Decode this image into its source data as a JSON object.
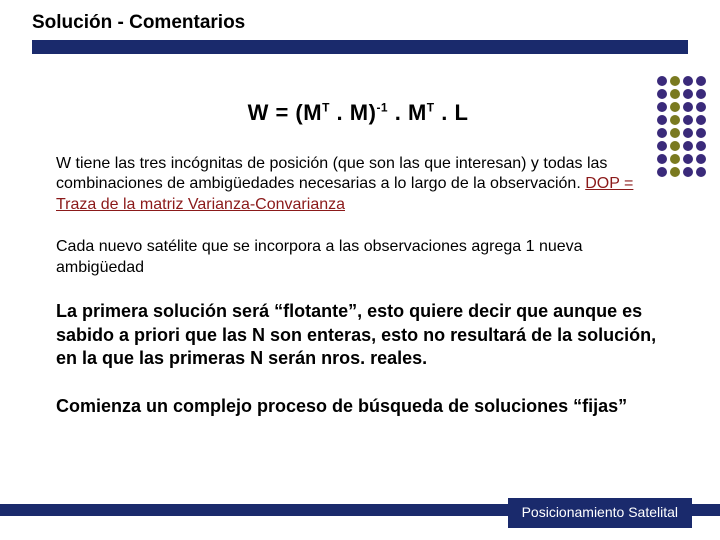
{
  "colors": {
    "navy": "#1a2a6c",
    "dop_red": "#8b1a1a",
    "dot_purple": "#3a2a7a",
    "dot_olive": "#7a7a20",
    "text_black": "#000000",
    "bg_white": "#ffffff",
    "footer_text": "#ffffff"
  },
  "dotgrid": {
    "rows": 8,
    "cols": 4,
    "olive_col": 1,
    "dot_size": 10,
    "gap": 3
  },
  "title": "Solución - Comentarios",
  "formula": {
    "prefix": "W = (M",
    "sup1": "T",
    "mid1": " . M)",
    "sup2": "-1",
    "mid2": " . M",
    "sup3": "T",
    "suffix": " . L"
  },
  "p1_before": "W tiene las tres incógnitas de posición (que son las que interesan) y todas las combinaciones de ambigüedades necesarias a lo largo de la observación.  ",
  "p1_dop": "DOP = Traza de la matriz Varianza-Convarianza",
  "p2": "Cada nuevo satélite que se incorpora a las observaciones agrega 1 nueva ambigüedad",
  "p3": "La primera solución será “flotante”, esto quiere decir que aunque es sabido a priori que las N son enteras, esto no resultará de la solución, en la que las primeras N serán nros. reales.",
  "p4": "Comienza un complejo proceso de búsqueda de soluciones “fijas”",
  "footer": "Posicionamiento Satelital"
}
